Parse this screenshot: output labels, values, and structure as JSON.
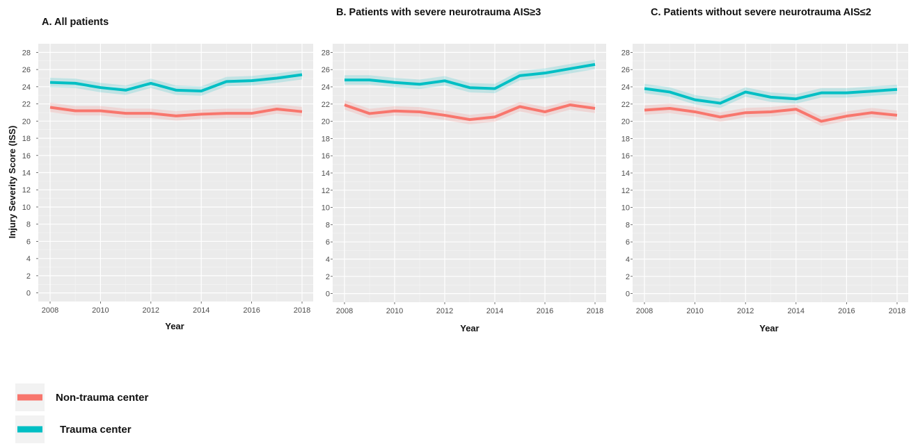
{
  "y_axis_label": "Injury Severity Score (ISS)",
  "legend": [
    {
      "label": "Non-trauma center",
      "color": "#f8766d"
    },
    {
      "label": "Trauma center",
      "color": "#00bfc4"
    }
  ],
  "chart_data": [
    {
      "type": "line",
      "title": "A. All patients",
      "xlabel": "Year",
      "ylabel": "Injury Severity Score (ISS)",
      "x": [
        2008,
        2009,
        2010,
        2011,
        2012,
        2013,
        2014,
        2015,
        2016,
        2017,
        2018
      ],
      "xticks": [
        "2008",
        "2010",
        "2012",
        "2014",
        "2016",
        "2018"
      ],
      "yticks": [
        "0",
        "2",
        "4",
        "6",
        "8",
        "10",
        "12",
        "14",
        "16",
        "18",
        "20",
        "22",
        "24",
        "26",
        "28"
      ],
      "ylim": [
        -1,
        29
      ],
      "grid": true,
      "series": [
        {
          "name": "Non-trauma center",
          "color": "#f8766d",
          "values": [
            21.6,
            21.2,
            21.2,
            20.9,
            20.9,
            20.6,
            20.8,
            20.9,
            20.9,
            21.4,
            21.1
          ]
        },
        {
          "name": "Trauma center",
          "color": "#00bfc4",
          "values": [
            24.5,
            24.4,
            23.9,
            23.6,
            24.4,
            23.6,
            23.5,
            24.6,
            24.7,
            25.0,
            25.4
          ]
        }
      ]
    },
    {
      "type": "line",
      "title": "B. Patients with severe neurotrauma AIS≥3",
      "xlabel": "Year",
      "ylabel": "",
      "x": [
        2008,
        2009,
        2010,
        2011,
        2012,
        2013,
        2014,
        2015,
        2016,
        2017,
        2018
      ],
      "xticks": [
        "2008",
        "2010",
        "2012",
        "2014",
        "2016",
        "2018"
      ],
      "yticks": [
        "0",
        "2",
        "4",
        "6",
        "8",
        "10",
        "12",
        "14",
        "16",
        "18",
        "20",
        "22",
        "24",
        "26",
        "28"
      ],
      "ylim": [
        -1,
        29
      ],
      "grid": true,
      "series": [
        {
          "name": "Non-trauma center",
          "color": "#f8766d",
          "values": [
            21.9,
            20.9,
            21.2,
            21.1,
            20.7,
            20.2,
            20.5,
            21.7,
            21.1,
            21.9,
            21.5
          ]
        },
        {
          "name": "Trauma center",
          "color": "#00bfc4",
          "values": [
            24.8,
            24.8,
            24.5,
            24.3,
            24.7,
            23.9,
            23.8,
            25.3,
            25.6,
            26.1,
            26.6
          ]
        }
      ]
    },
    {
      "type": "line",
      "title": "C. Patients without severe neurotrauma AIS≤2",
      "xlabel": "Year",
      "ylabel": "",
      "x": [
        2008,
        2009,
        2010,
        2011,
        2012,
        2013,
        2014,
        2015,
        2016,
        2017,
        2018
      ],
      "xticks": [
        "2008",
        "2010",
        "2012",
        "2014",
        "2016",
        "2018"
      ],
      "yticks": [
        "0",
        "2",
        "4",
        "6",
        "8",
        "10",
        "12",
        "14",
        "16",
        "18",
        "20",
        "22",
        "24",
        "26",
        "28"
      ],
      "ylim": [
        -1,
        29
      ],
      "grid": true,
      "series": [
        {
          "name": "Non-trauma center",
          "color": "#f8766d",
          "values": [
            21.3,
            21.5,
            21.1,
            20.5,
            21.0,
            21.1,
            21.4,
            20.0,
            20.6,
            21.0,
            20.7
          ]
        },
        {
          "name": "Trauma center",
          "color": "#00bfc4",
          "values": [
            23.8,
            23.4,
            22.5,
            22.1,
            23.4,
            22.8,
            22.6,
            23.3,
            23.3,
            23.5,
            23.7
          ]
        }
      ]
    }
  ]
}
